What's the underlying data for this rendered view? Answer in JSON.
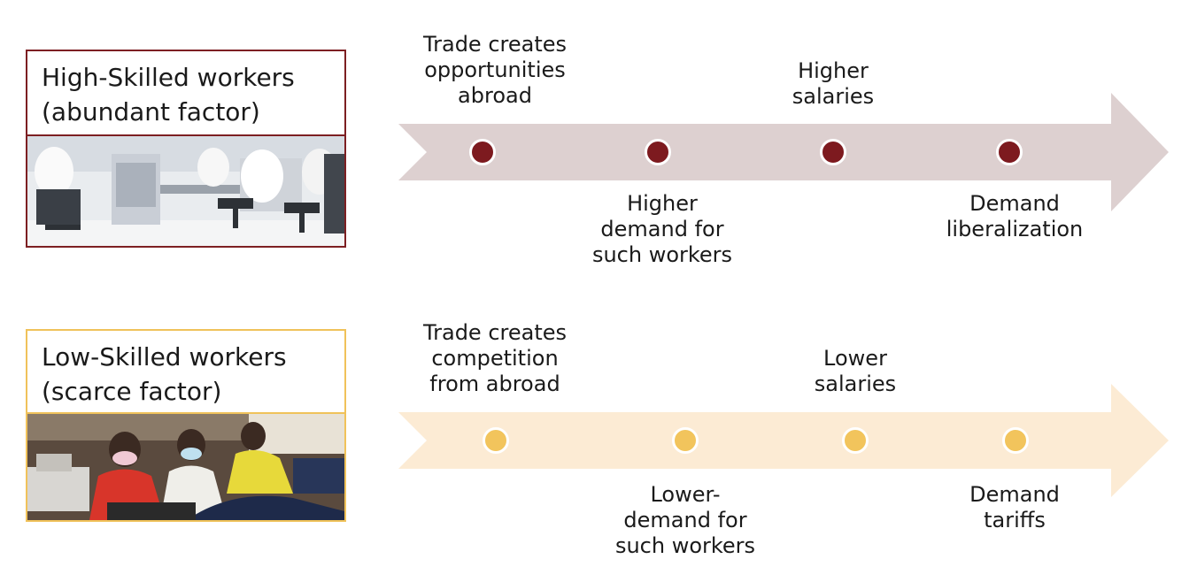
{
  "colors": {
    "high_accent": "#7d1f22",
    "high_arrow": "#ddd0d0",
    "high_dot": "#7d1a1f",
    "low_accent": "#f0c25a",
    "low_arrow": "#fcebd4",
    "low_dot": "#f2c45c"
  },
  "high": {
    "title_line1": "High-Skilled workers",
    "title_line2": "(abundant factor)",
    "photo_icon": "lab-workers-photo",
    "steps": [
      {
        "lines": [
          "Trade creates",
          "opportunities",
          "abroad"
        ]
      },
      {
        "lines": [
          "Higher",
          "demand for",
          "such workers"
        ]
      },
      {
        "lines": [
          "Higher",
          "salaries"
        ]
      },
      {
        "lines": [
          "Demand",
          "liberalization"
        ]
      }
    ]
  },
  "low": {
    "title_line1": "Low-Skilled workers",
    "title_line2": "(scarce factor)",
    "photo_icon": "garment-workers-photo",
    "steps": [
      {
        "lines": [
          "Trade creates",
          "competition",
          "from abroad"
        ]
      },
      {
        "lines": [
          "Lower-",
          "demand for",
          "such workers"
        ]
      },
      {
        "lines": [
          "Lower",
          "salaries"
        ]
      },
      {
        "lines": [
          "Demand",
          "tariffs"
        ]
      }
    ]
  }
}
